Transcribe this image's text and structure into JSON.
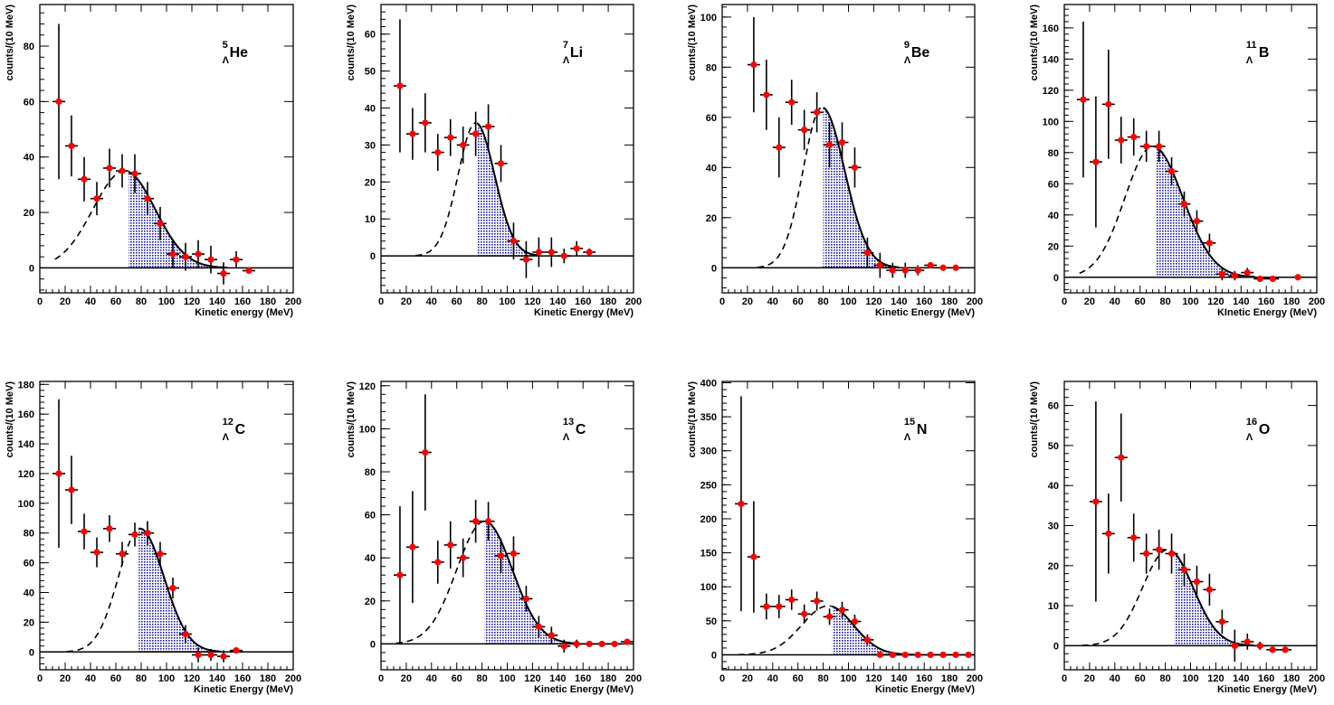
{
  "chart_data": [
    {
      "type": "scatter",
      "xlabel": "Kinetic energy (MeV)",
      "ylabel": "counts/(10 MeV)",
      "label_sup": "5",
      "label_sub": "Λ",
      "label_main": "He",
      "xlim": [
        0,
        200
      ],
      "ylim": [
        -9,
        95
      ],
      "xticks": [
        0,
        20,
        40,
        60,
        80,
        100,
        120,
        140,
        160,
        180,
        200
      ],
      "yticks": [
        0,
        20,
        40,
        60,
        80
      ],
      "shade_from": 70,
      "fit": {
        "amplitude": 35,
        "mean": 67,
        "sigma": 25,
        "right_sigma": 24
      },
      "points": [
        {
          "x": 15,
          "y": 60,
          "err": 28
        },
        {
          "x": 25,
          "y": 44,
          "err": 11
        },
        {
          "x": 35,
          "y": 32,
          "err": 8
        },
        {
          "x": 45,
          "y": 25,
          "err": 6
        },
        {
          "x": 55,
          "y": 36,
          "err": 7
        },
        {
          "x": 65,
          "y": 35,
          "err": 6
        },
        {
          "x": 75,
          "y": 34,
          "err": 7
        },
        {
          "x": 85,
          "y": 25,
          "err": 6
        },
        {
          "x": 95,
          "y": 16,
          "err": 6
        },
        {
          "x": 105,
          "y": 5,
          "err": 5
        },
        {
          "x": 115,
          "y": 4,
          "err": 5
        },
        {
          "x": 125,
          "y": 5,
          "err": 5
        },
        {
          "x": 135,
          "y": 3,
          "err": 5
        },
        {
          "x": 145,
          "y": -2,
          "err": 4
        },
        {
          "x": 155,
          "y": 3,
          "err": 3
        },
        {
          "x": 165,
          "y": -1,
          "err": 0
        }
      ]
    },
    {
      "type": "scatter",
      "xlabel": "Kinetic Energy (MeV)",
      "ylabel": "counts/(10 MeV)",
      "label_sup": "7",
      "label_sub": "Λ",
      "label_main": "Li",
      "xlim": [
        0,
        200
      ],
      "ylim": [
        -10,
        68
      ],
      "xticks": [
        0,
        20,
        40,
        60,
        80,
        100,
        120,
        140,
        160,
        180,
        200
      ],
      "yticks": [
        0,
        10,
        20,
        30,
        40,
        50,
        60
      ],
      "shade_from": 76,
      "fit": {
        "amplitude": 36,
        "mean": 75,
        "sigma": 14,
        "right_sigma": 15
      },
      "points": [
        {
          "x": 15,
          "y": 46,
          "err": 18
        },
        {
          "x": 25,
          "y": 33,
          "err": 7
        },
        {
          "x": 35,
          "y": 36,
          "err": 8
        },
        {
          "x": 45,
          "y": 28,
          "err": 5
        },
        {
          "x": 55,
          "y": 32,
          "err": 5
        },
        {
          "x": 65,
          "y": 30,
          "err": 5
        },
        {
          "x": 75,
          "y": 33,
          "err": 6
        },
        {
          "x": 85,
          "y": 35,
          "err": 6
        },
        {
          "x": 95,
          "y": 25,
          "err": 5
        },
        {
          "x": 105,
          "y": 4,
          "err": 5
        },
        {
          "x": 115,
          "y": -1,
          "err": 5
        },
        {
          "x": 125,
          "y": 1,
          "err": 4
        },
        {
          "x": 135,
          "y": 1,
          "err": 4
        },
        {
          "x": 145,
          "y": 0,
          "err": 2
        },
        {
          "x": 155,
          "y": 2,
          "err": 2
        },
        {
          "x": 165,
          "y": 1,
          "err": 1
        }
      ]
    },
    {
      "type": "scatter",
      "xlabel": "Kinetic Energy (MeV)",
      "ylabel": "counts/(10 MeV)",
      "label_sup": "9",
      "label_sub": "Λ",
      "label_main": "Be",
      "xlim": [
        0,
        200
      ],
      "ylim": [
        -10,
        105
      ],
      "xticks": [
        0,
        20,
        40,
        60,
        80,
        100,
        120,
        140,
        160,
        180,
        200
      ],
      "yticks": [
        0,
        20,
        40,
        60,
        80,
        100
      ],
      "shade_from": 80,
      "fit": {
        "amplitude": 64,
        "mean": 79,
        "sigma": 15,
        "right_sigma": 18
      },
      "points": [
        {
          "x": 25,
          "y": 81,
          "err": 19
        },
        {
          "x": 35,
          "y": 69,
          "err": 14
        },
        {
          "x": 45,
          "y": 48,
          "err": 12
        },
        {
          "x": 55,
          "y": 66,
          "err": 9
        },
        {
          "x": 65,
          "y": 55,
          "err": 8
        },
        {
          "x": 75,
          "y": 62,
          "err": 8
        },
        {
          "x": 85,
          "y": 49,
          "err": 9
        },
        {
          "x": 95,
          "y": 50,
          "err": 8
        },
        {
          "x": 105,
          "y": 40,
          "err": 8
        },
        {
          "x": 115,
          "y": 6,
          "err": 6
        },
        {
          "x": 125,
          "y": 1,
          "err": 5
        },
        {
          "x": 135,
          "y": -1,
          "err": 3
        },
        {
          "x": 145,
          "y": -1,
          "err": 3
        },
        {
          "x": 155,
          "y": -1,
          "err": 2
        },
        {
          "x": 165,
          "y": 1,
          "err": 1
        },
        {
          "x": 175,
          "y": 0,
          "err": 0
        },
        {
          "x": 185,
          "y": 0,
          "err": 0
        }
      ]
    },
    {
      "type": "scatter",
      "xlabel": "KInetic Energy (MeV)",
      "ylabel": "counts/(10 MeV)",
      "label_sup": "11",
      "label_sub": "Λ",
      "label_main": "B",
      "xlim": [
        0,
        200
      ],
      "ylim": [
        -10,
        175
      ],
      "xticks": [
        0,
        20,
        40,
        60,
        80,
        100,
        120,
        140,
        160,
        180,
        200
      ],
      "yticks": [
        0,
        20,
        40,
        60,
        80,
        100,
        120,
        140,
        160
      ],
      "shade_from": 73,
      "fit": {
        "amplitude": 84,
        "mean": 70,
        "sigma": 22,
        "right_sigma": 24
      },
      "points": [
        {
          "x": 15,
          "y": 114,
          "err": 50
        },
        {
          "x": 25,
          "y": 74,
          "err": 42
        },
        {
          "x": 35,
          "y": 111,
          "err": 35
        },
        {
          "x": 45,
          "y": 88,
          "err": 15
        },
        {
          "x": 55,
          "y": 90,
          "err": 12
        },
        {
          "x": 65,
          "y": 84,
          "err": 10
        },
        {
          "x": 75,
          "y": 84,
          "err": 10
        },
        {
          "x": 85,
          "y": 68,
          "err": 9
        },
        {
          "x": 95,
          "y": 47,
          "err": 8
        },
        {
          "x": 105,
          "y": 36,
          "err": 7
        },
        {
          "x": 115,
          "y": 22,
          "err": 6
        },
        {
          "x": 125,
          "y": 2,
          "err": 4
        },
        {
          "x": 135,
          "y": 1,
          "err": 3
        },
        {
          "x": 145,
          "y": 3,
          "err": 3
        },
        {
          "x": 155,
          "y": -1,
          "err": 2
        },
        {
          "x": 165,
          "y": -1,
          "err": 1
        },
        {
          "x": 185,
          "y": 0,
          "err": 0
        }
      ]
    },
    {
      "type": "scatter",
      "xlabel": "Kinetic Energy (MeV)",
      "ylabel": "counts/(10 MeV)",
      "label_sup": "12",
      "label_sub": "Λ",
      "label_main": "C",
      "xlim": [
        0,
        200
      ],
      "ylim": [
        -12,
        182
      ],
      "xticks": [
        0,
        20,
        40,
        60,
        80,
        100,
        120,
        140,
        160,
        180,
        200
      ],
      "yticks": [
        0,
        20,
        40,
        60,
        80,
        100,
        120,
        140,
        160,
        180
      ],
      "shade_from": 78,
      "fit": {
        "amplitude": 83,
        "mean": 79,
        "sigma": 17,
        "right_sigma": 19
      },
      "points": [
        {
          "x": 15,
          "y": 120,
          "err": 50
        },
        {
          "x": 25,
          "y": 109,
          "err": 23
        },
        {
          "x": 35,
          "y": 81,
          "err": 12
        },
        {
          "x": 45,
          "y": 67,
          "err": 10
        },
        {
          "x": 55,
          "y": 83,
          "err": 9
        },
        {
          "x": 65,
          "y": 66,
          "err": 8
        },
        {
          "x": 75,
          "y": 79,
          "err": 8
        },
        {
          "x": 85,
          "y": 80,
          "err": 8
        },
        {
          "x": 95,
          "y": 66,
          "err": 8
        },
        {
          "x": 105,
          "y": 43,
          "err": 7
        },
        {
          "x": 115,
          "y": 12,
          "err": 6
        },
        {
          "x": 125,
          "y": -2,
          "err": 5
        },
        {
          "x": 135,
          "y": -2,
          "err": 4
        },
        {
          "x": 145,
          "y": -3,
          "err": 4
        },
        {
          "x": 155,
          "y": 1,
          "err": 2
        }
      ]
    },
    {
      "type": "scatter",
      "xlabel": "Kinetic Energy (MeV)",
      "ylabel": "counts/(10 MeV)",
      "label_sup": "13",
      "label_sub": "Λ",
      "label_main": "C",
      "xlim": [
        0,
        200
      ],
      "ylim": [
        -12,
        122
      ],
      "xticks": [
        0,
        20,
        40,
        60,
        80,
        100,
        120,
        140,
        160,
        180,
        200
      ],
      "yticks": [
        0,
        20,
        40,
        60,
        80,
        100,
        120
      ],
      "shade_from": 82,
      "fit": {
        "amplitude": 57,
        "mean": 82,
        "sigma": 22,
        "right_sigma": 22
      },
      "points": [
        {
          "x": 15,
          "y": 32,
          "err": 32
        },
        {
          "x": 25,
          "y": 45,
          "err": 26
        },
        {
          "x": 35,
          "y": 89,
          "err": 27
        },
        {
          "x": 45,
          "y": 38,
          "err": 10
        },
        {
          "x": 55,
          "y": 46,
          "err": 11
        },
        {
          "x": 65,
          "y": 40,
          "err": 9
        },
        {
          "x": 75,
          "y": 57,
          "err": 10
        },
        {
          "x": 85,
          "y": 57,
          "err": 9
        },
        {
          "x": 95,
          "y": 41,
          "err": 8
        },
        {
          "x": 105,
          "y": 42,
          "err": 8
        },
        {
          "x": 115,
          "y": 21,
          "err": 6
        },
        {
          "x": 125,
          "y": 8,
          "err": 5
        },
        {
          "x": 135,
          "y": 4,
          "err": 4
        },
        {
          "x": 145,
          "y": -1,
          "err": 3
        },
        {
          "x": 155,
          "y": 0,
          "err": 2
        },
        {
          "x": 165,
          "y": 0,
          "err": 1
        },
        {
          "x": 175,
          "y": 0,
          "err": 0
        },
        {
          "x": 185,
          "y": 0,
          "err": 0
        },
        {
          "x": 195,
          "y": 1,
          "err": 0
        }
      ]
    },
    {
      "type": "scatter",
      "xlabel": "Kinetic Energy (MeV)",
      "ylabel": "counts/(10 MeV)",
      "label_sup": "15",
      "label_sub": "Λ",
      "label_main": "N",
      "xlim": [
        0,
        200
      ],
      "ylim": [
        -22,
        402
      ],
      "xticks": [
        0,
        20,
        40,
        60,
        80,
        100,
        120,
        140,
        160,
        180,
        200
      ],
      "yticks": [
        0,
        50,
        100,
        150,
        200,
        250,
        300,
        350,
        400
      ],
      "shade_from": 87,
      "fit": {
        "amplitude": 72,
        "mean": 84,
        "sigma": 21,
        "right_sigma": 20
      },
      "points": [
        {
          "x": 15,
          "y": 222,
          "err": 158
        },
        {
          "x": 25,
          "y": 144,
          "err": 82
        },
        {
          "x": 35,
          "y": 71,
          "err": 19
        },
        {
          "x": 45,
          "y": 71,
          "err": 17
        },
        {
          "x": 55,
          "y": 81,
          "err": 15
        },
        {
          "x": 65,
          "y": 60,
          "err": 14
        },
        {
          "x": 75,
          "y": 79,
          "err": 14
        },
        {
          "x": 85,
          "y": 56,
          "err": 12
        },
        {
          "x": 95,
          "y": 66,
          "err": 12
        },
        {
          "x": 105,
          "y": 49,
          "err": 10
        },
        {
          "x": 115,
          "y": 22,
          "err": 8
        },
        {
          "x": 125,
          "y": 0,
          "err": 4
        },
        {
          "x": 135,
          "y": 0,
          "err": 3
        },
        {
          "x": 145,
          "y": 0,
          "err": 2
        },
        {
          "x": 155,
          "y": 0,
          "err": 0
        },
        {
          "x": 165,
          "y": 0,
          "err": 0
        },
        {
          "x": 175,
          "y": 0,
          "err": 0
        },
        {
          "x": 185,
          "y": 0,
          "err": 0
        },
        {
          "x": 195,
          "y": 0,
          "err": 0
        }
      ]
    },
    {
      "type": "scatter",
      "xlabel": "Kinetic Energy (MeV)",
      "ylabel": "counts/(10 MeV)",
      "label_sup": "16",
      "label_sub": "Λ",
      "label_main": "O",
      "xlim": [
        0,
        200
      ],
      "ylim": [
        -6,
        66
      ],
      "xticks": [
        0,
        20,
        40,
        60,
        80,
        100,
        120,
        140,
        160,
        180,
        200
      ],
      "yticks": [
        0,
        10,
        20,
        30,
        40,
        50,
        60
      ],
      "shade_from": 87,
      "fit": {
        "amplitude": 24,
        "mean": 82,
        "sigma": 20,
        "right_sigma": 20
      },
      "points": [
        {
          "x": 25,
          "y": 36,
          "err": 25
        },
        {
          "x": 35,
          "y": 28,
          "err": 10
        },
        {
          "x": 45,
          "y": 47,
          "err": 11
        },
        {
          "x": 55,
          "y": 27,
          "err": 6
        },
        {
          "x": 65,
          "y": 23,
          "err": 5
        },
        {
          "x": 75,
          "y": 24,
          "err": 5
        },
        {
          "x": 85,
          "y": 23,
          "err": 5
        },
        {
          "x": 95,
          "y": 19,
          "err": 4
        },
        {
          "x": 105,
          "y": 16,
          "err": 4
        },
        {
          "x": 115,
          "y": 14,
          "err": 4
        },
        {
          "x": 125,
          "y": 6,
          "err": 3
        },
        {
          "x": 135,
          "y": 0,
          "err": 4
        },
        {
          "x": 145,
          "y": 1,
          "err": 2
        },
        {
          "x": 155,
          "y": 0,
          "err": 1
        },
        {
          "x": 165,
          "y": -1,
          "err": 0
        },
        {
          "x": 175,
          "y": -1,
          "err": 0
        }
      ]
    }
  ],
  "style": {
    "marker_color": "#ff0000",
    "shade_color": "#1a1aa8",
    "curve_color": "#000000"
  }
}
